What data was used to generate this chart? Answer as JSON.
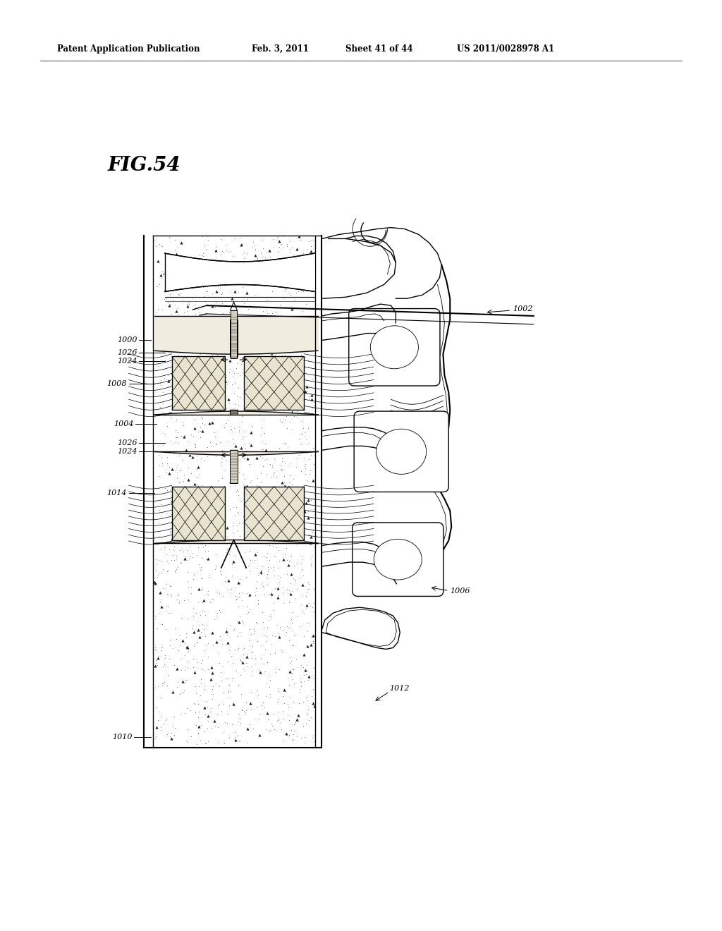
{
  "bg_color": "#ffffff",
  "header_text": "Patent Application Publication",
  "header_date": "Feb. 3, 2011",
  "header_sheet": "Sheet 41 of 44",
  "header_patent": "US 2011/0028978 A1",
  "fig_label": "FIG.54",
  "figsize": [
    10.24,
    13.2
  ],
  "dpi": 100
}
